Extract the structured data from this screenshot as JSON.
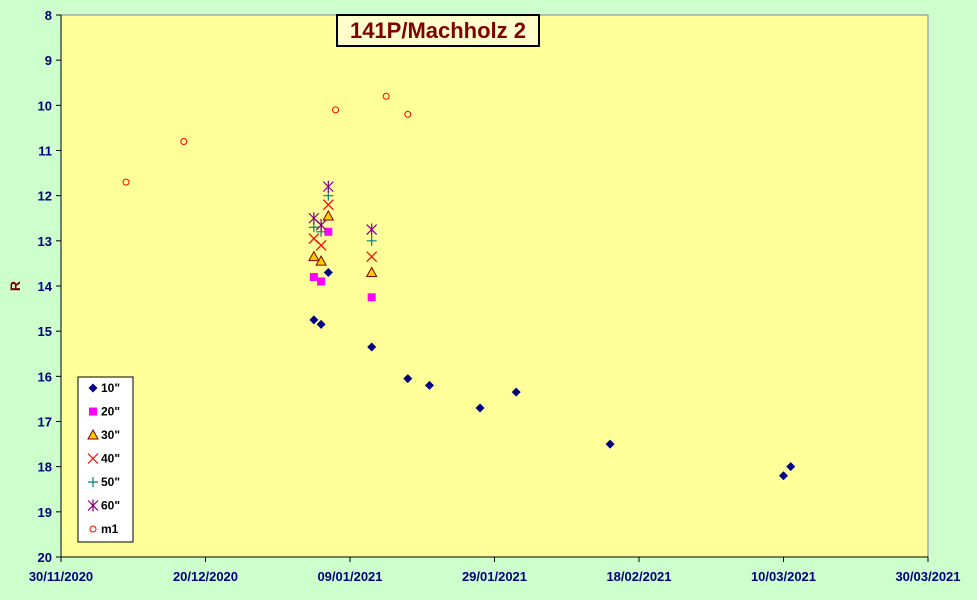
{
  "chart_data": {
    "type": "scatter",
    "title": "141P/Machholz 2",
    "xlabel": "",
    "ylabel": "R",
    "x_ticks": [
      "30/11/2020",
      "20/12/2020",
      "09/01/2021",
      "29/01/2021",
      "18/02/2021",
      "10/03/2021",
      "30/03/2021"
    ],
    "xlim": [
      "2020-11-30",
      "2021-03-30"
    ],
    "ylim": [
      20,
      8
    ],
    "y_inverted": true,
    "y_ticks": [
      "8",
      "9",
      "10",
      "11",
      "12",
      "13",
      "14",
      "15",
      "16",
      "17",
      "18",
      "19",
      "20"
    ],
    "grid": false,
    "legend_position": "bottom-left",
    "plot_background": "#ffff99",
    "page_background": "#ccffcc",
    "series": [
      {
        "name": "10\"",
        "marker": "diamond",
        "color": "#000080",
        "points": [
          {
            "x": "2021-01-04",
            "y": 14.75
          },
          {
            "x": "2021-01-05",
            "y": 14.85
          },
          {
            "x": "2021-01-06",
            "y": 13.7
          },
          {
            "x": "2021-01-12",
            "y": 15.35
          },
          {
            "x": "2021-01-17",
            "y": 16.05
          },
          {
            "x": "2021-01-20",
            "y": 16.2
          },
          {
            "x": "2021-01-27",
            "y": 16.7
          },
          {
            "x": "2021-02-01",
            "y": 16.35
          },
          {
            "x": "2021-02-14",
            "y": 17.5
          },
          {
            "x": "2021-03-10",
            "y": 18.2
          },
          {
            "x": "2021-03-11",
            "y": 18.0
          }
        ]
      },
      {
        "name": "20\"",
        "marker": "square",
        "color": "#ff00ff",
        "points": [
          {
            "x": "2021-01-04",
            "y": 13.8
          },
          {
            "x": "2021-01-05",
            "y": 13.9
          },
          {
            "x": "2021-01-06",
            "y": 12.8
          },
          {
            "x": "2021-01-12",
            "y": 14.25
          }
        ]
      },
      {
        "name": "30\"",
        "marker": "triangle",
        "color": "#ffcc00",
        "stroke": "#800000",
        "points": [
          {
            "x": "2021-01-04",
            "y": 13.35
          },
          {
            "x": "2021-01-05",
            "y": 13.45
          },
          {
            "x": "2021-01-06",
            "y": 12.45
          },
          {
            "x": "2021-01-12",
            "y": 13.7
          }
        ]
      },
      {
        "name": "40\"",
        "marker": "x",
        "color": "#ff0000",
        "points": [
          {
            "x": "2021-01-04",
            "y": 12.95
          },
          {
            "x": "2021-01-05",
            "y": 13.1
          },
          {
            "x": "2021-01-06",
            "y": 12.2
          },
          {
            "x": "2021-01-12",
            "y": 13.35
          }
        ]
      },
      {
        "name": "50\"",
        "marker": "plus",
        "color": "#008080",
        "points": [
          {
            "x": "2021-01-04",
            "y": 12.7
          },
          {
            "x": "2021-01-05",
            "y": 12.8
          },
          {
            "x": "2021-01-06",
            "y": 12.0
          },
          {
            "x": "2021-01-12",
            "y": 13.0
          }
        ]
      },
      {
        "name": "60\"",
        "marker": "star",
        "color": "#800080",
        "points": [
          {
            "x": "2021-01-04",
            "y": 12.5
          },
          {
            "x": "2021-01-05",
            "y": 12.65
          },
          {
            "x": "2021-01-06",
            "y": 11.8
          },
          {
            "x": "2021-01-12",
            "y": 12.75
          }
        ]
      },
      {
        "name": "m1",
        "marker": "circle",
        "color": "#ff0000",
        "points": [
          {
            "x": "2020-12-09",
            "y": 11.7
          },
          {
            "x": "2020-12-17",
            "y": 10.8
          },
          {
            "x": "2021-01-07",
            "y": 10.1
          },
          {
            "x": "2021-01-14",
            "y": 9.8
          },
          {
            "x": "2021-01-17",
            "y": 10.2
          }
        ]
      }
    ]
  }
}
